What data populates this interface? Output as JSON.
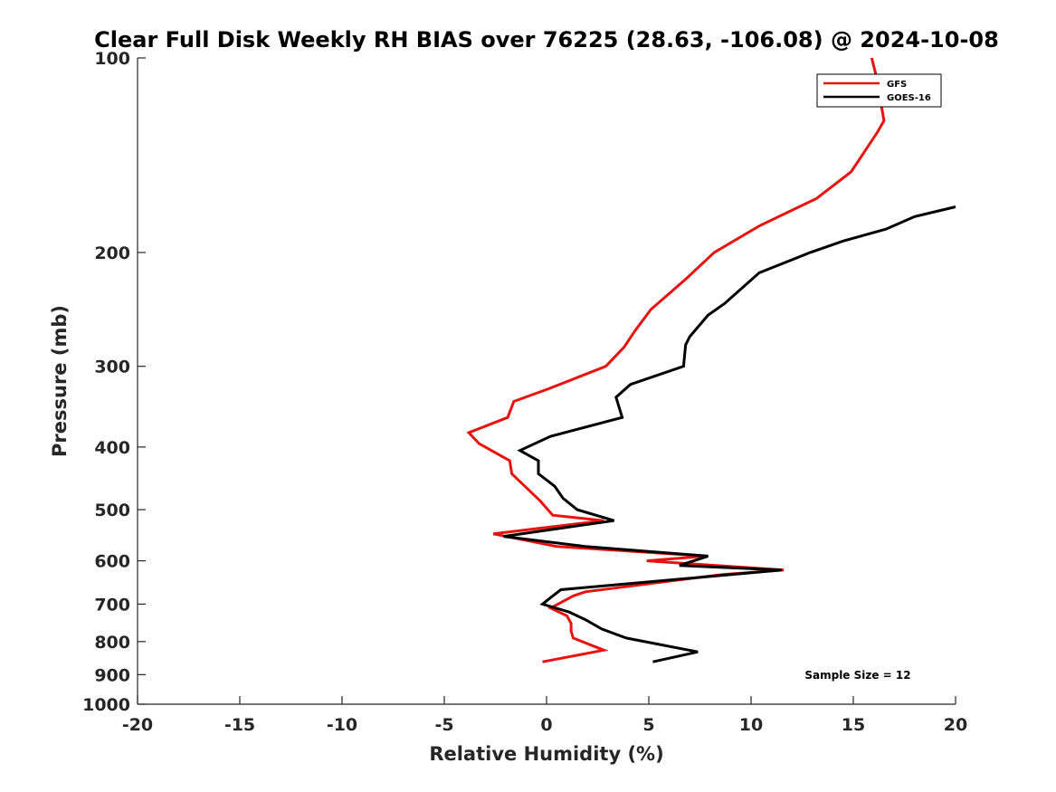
{
  "chart_data": {
    "type": "line",
    "title": "Clear Full Disk Weekly RH BIAS over 76225 (28.63, -106.08) @ 2024-10-08",
    "xlabel": "Relative Humidity (%)",
    "ylabel": "Pressure (mb)",
    "xlim": [
      -20,
      20
    ],
    "ylim": [
      100,
      1000
    ],
    "y_scale": "log",
    "y_reversed": true,
    "x_ticks": [
      -20,
      -15,
      -10,
      -5,
      0,
      5,
      10,
      15,
      20
    ],
    "x_tick_labels": [
      "-20",
      "-15",
      "-10",
      "-5",
      "0",
      "5",
      "10",
      "15",
      "20"
    ],
    "y_ticks": [
      100,
      200,
      300,
      400,
      500,
      600,
      700,
      800,
      900,
      1000
    ],
    "y_tick_labels": [
      "100",
      "200",
      "300",
      "400",
      "500",
      "600",
      "700",
      "800",
      "900",
      "1000"
    ],
    "grid": false,
    "legend_position": "top-right",
    "annotation": "Sample Size = 12",
    "series": [
      {
        "name": "GFS",
        "color": "#e8130f",
        "x": [
          15.9,
          16.1,
          16.5,
          16.2,
          14.9,
          13.2,
          10.4,
          8.2,
          6.8,
          5.1,
          4.3,
          3.8,
          2.9,
          0.1,
          -1.6,
          -1.9,
          -3.8,
          -3.3,
          -1.8,
          -1.7,
          -0.3,
          0.3,
          2.8,
          -2.6,
          0.5,
          7.8,
          4.9,
          11.6,
          8.6,
          1.9,
          1.3,
          0.2,
          1.0,
          1.2,
          1.2,
          1.3,
          2.8,
          -0.2
        ],
        "y": [
          100,
          106,
          125,
          130,
          150,
          165,
          182,
          200,
          220,
          245,
          265,
          280,
          300,
          325,
          340,
          360,
          380,
          395,
          420,
          440,
          485,
          510,
          520,
          545,
          570,
          590,
          600,
          620,
          630,
          670,
          680,
          710,
          730,
          750,
          770,
          790,
          825,
          860
        ]
      },
      {
        "name": "GOES-16",
        "color": "#000000",
        "x": [
          20.0,
          18.0,
          16.6,
          14.5,
          12.9,
          10.4,
          8.7,
          7.9,
          7.0,
          6.8,
          6.7,
          4.1,
          3.4,
          3.7,
          0.2,
          -1.3,
          -0.4,
          -0.4,
          0.4,
          0.8,
          1.5,
          3.3,
          -2.1,
          1.9,
          7.9,
          6.5,
          11.5,
          0.7,
          0.3,
          -0.2,
          1.1,
          1.9,
          2.7,
          3.9,
          7.4,
          5.2
        ],
        "y": [
          170,
          176,
          184,
          192,
          200,
          215,
          240,
          250,
          270,
          278,
          300,
          320,
          335,
          360,
          385,
          405,
          420,
          440,
          460,
          480,
          500,
          520,
          550,
          570,
          590,
          610,
          620,
          665,
          680,
          700,
          720,
          740,
          765,
          790,
          830,
          860
        ]
      }
    ]
  }
}
